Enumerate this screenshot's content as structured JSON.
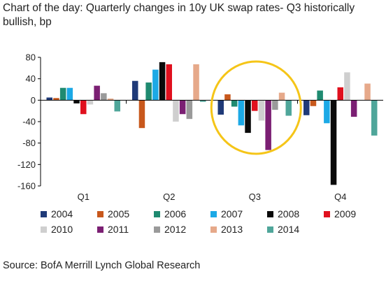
{
  "title": "Chart of the day: Quarterly changes in 10y UK swap rates- Q3 historically bullish, bp",
  "source": "Source: BofA Merrill Lynch Global Research",
  "highlight": {
    "target_category": "Q3",
    "color": "#F5C518"
  },
  "chart_data": {
    "type": "bar",
    "categories": [
      "Q1",
      "Q2",
      "Q3",
      "Q4"
    ],
    "ylim": [
      -160,
      80
    ],
    "yticks": [
      80,
      40,
      0,
      -40,
      -80,
      -120,
      -160
    ],
    "xlabel": "",
    "ylabel": "",
    "grid": false,
    "legend_position": "bottom",
    "series": [
      {
        "name": "2004",
        "color": "#1F3A78",
        "values": [
          5,
          36,
          -27,
          -28
        ]
      },
      {
        "name": "2005",
        "color": "#C8581C",
        "values": [
          4,
          -52,
          11,
          -11
        ]
      },
      {
        "name": "2006",
        "color": "#1F8A70",
        "values": [
          23,
          33,
          -12,
          18
        ]
      },
      {
        "name": "2007",
        "color": "#1CA9E6",
        "values": [
          23,
          57,
          -47,
          -43
        ]
      },
      {
        "name": "2008",
        "color": "#0A0A0A",
        "values": [
          -6,
          71,
          -61,
          -158
        ]
      },
      {
        "name": "2009",
        "color": "#E0101E",
        "values": [
          -26,
          67,
          -20,
          24
        ]
      },
      {
        "name": "2010",
        "color": "#CFCFCF",
        "values": [
          -8,
          -40,
          -38,
          52
        ]
      },
      {
        "name": "2011",
        "color": "#7B1F73",
        "values": [
          27,
          -26,
          -93,
          -31
        ]
      },
      {
        "name": "2012",
        "color": "#9A9A9A",
        "values": [
          13,
          -35,
          -18,
          0
        ]
      },
      {
        "name": "2013",
        "color": "#E6A98A",
        "values": [
          3,
          67,
          14,
          31
        ]
      },
      {
        "name": "2014",
        "color": "#4FA69A",
        "values": [
          -21,
          -3,
          -29,
          -66
        ]
      }
    ]
  }
}
